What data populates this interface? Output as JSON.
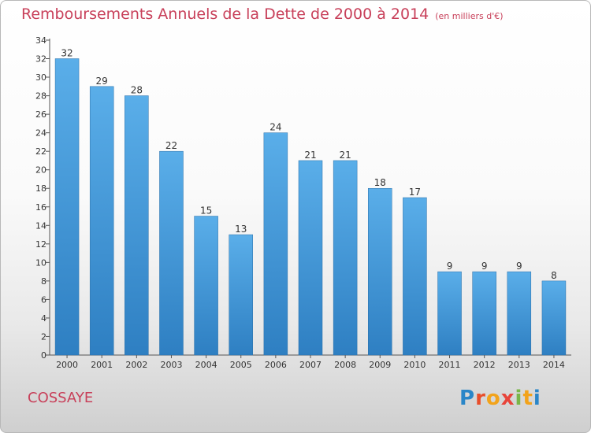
{
  "chart_data": {
    "type": "bar",
    "title": "Remboursements Annuels de la Dette de 2000 à 2014",
    "unit_label": "(en milliers d'€)",
    "categories": [
      "2000",
      "2001",
      "2002",
      "2003",
      "2004",
      "2005",
      "2006",
      "2007",
      "2008",
      "2009",
      "2010",
      "2011",
      "2012",
      "2013",
      "2014"
    ],
    "values": [
      32,
      29,
      28,
      22,
      15,
      13,
      24,
      21,
      21,
      18,
      17,
      9,
      9,
      9,
      8
    ],
    "ylim": [
      0,
      34
    ],
    "yticks": [
      0,
      2,
      4,
      6,
      8,
      10,
      12,
      14,
      16,
      18,
      20,
      22,
      24,
      26,
      28,
      30,
      32,
      34
    ],
    "xlabel": "",
    "ylabel": "",
    "grid": false
  },
  "footer": {
    "commune": "COSSAYE",
    "logo_letters": [
      "P",
      "r",
      "o",
      "x",
      "i",
      "t",
      "i"
    ],
    "logo_colors": [
      "#2a86c8",
      "#e84e2b",
      "#f2a31b",
      "#e8443a",
      "#7ab648",
      "#f2a31b",
      "#2a86c8"
    ]
  },
  "colors": {
    "title": "#c8405a",
    "bar_top": "#5aaee9",
    "bar_bottom": "#2e7fc2",
    "axis": "#555555"
  }
}
